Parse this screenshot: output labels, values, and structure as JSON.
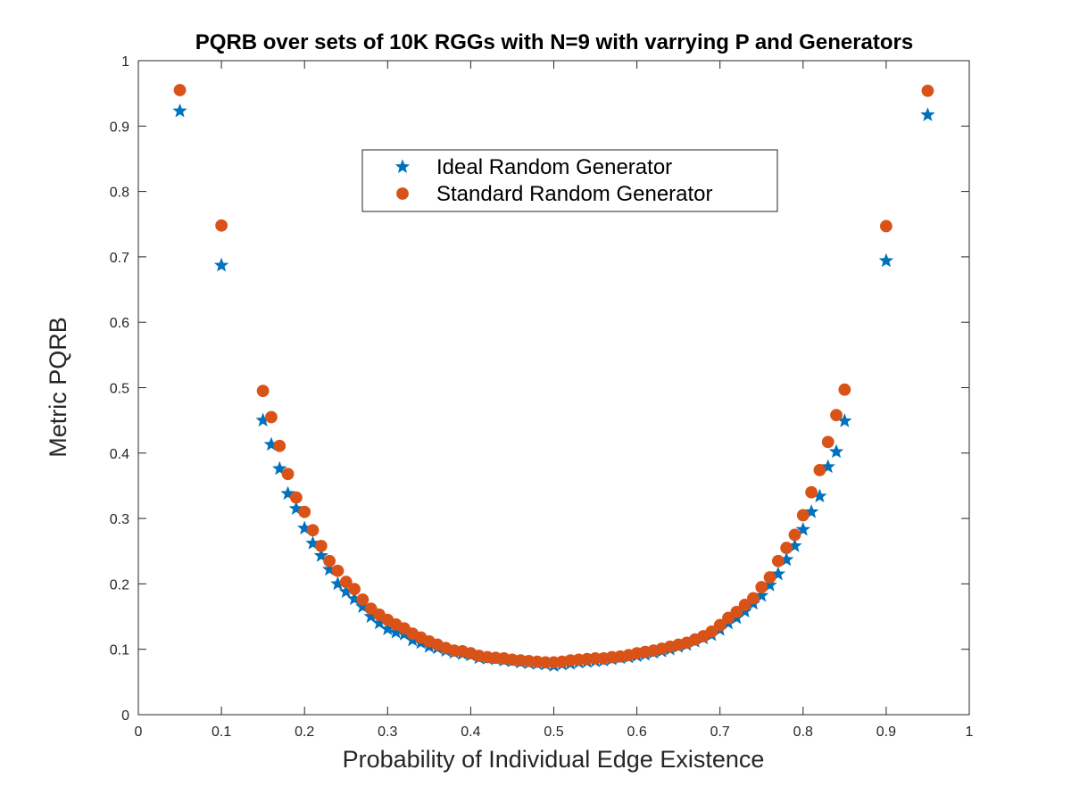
{
  "chart_data": {
    "type": "scatter",
    "title": "PQRB over sets of 10K RGGs with N=9 with varrying P and Generators",
    "xlabel": "Probability of Individual Edge Existence",
    "ylabel": "Metric PQRB",
    "xlim": [
      0,
      1
    ],
    "ylim": [
      0,
      1
    ],
    "x_ticks": [
      "0",
      "0.1",
      "0.2",
      "0.3",
      "0.4",
      "0.5",
      "0.6",
      "0.7",
      "0.8",
      "0.9",
      "1"
    ],
    "y_ticks": [
      "0",
      "0.1",
      "0.2",
      "0.3",
      "0.4",
      "0.5",
      "0.6",
      "0.7",
      "0.8",
      "0.9",
      "1"
    ],
    "grid": false,
    "legend_position": "top-center",
    "series": [
      {
        "name": "Ideal Random Generator",
        "marker": "star",
        "color": "#0072BD",
        "x": [
          0.05,
          0.1,
          0.15,
          0.16,
          0.17,
          0.18,
          0.19,
          0.2,
          0.21,
          0.22,
          0.23,
          0.24,
          0.25,
          0.26,
          0.27,
          0.28,
          0.29,
          0.3,
          0.31,
          0.32,
          0.33,
          0.34,
          0.35,
          0.36,
          0.37,
          0.38,
          0.39,
          0.4,
          0.41,
          0.42,
          0.43,
          0.44,
          0.45,
          0.46,
          0.47,
          0.48,
          0.49,
          0.5,
          0.51,
          0.52,
          0.53,
          0.54,
          0.55,
          0.56,
          0.57,
          0.58,
          0.59,
          0.6,
          0.61,
          0.62,
          0.63,
          0.64,
          0.65,
          0.66,
          0.67,
          0.68,
          0.69,
          0.7,
          0.71,
          0.72,
          0.73,
          0.74,
          0.75,
          0.76,
          0.77,
          0.78,
          0.79,
          0.8,
          0.81,
          0.82,
          0.83,
          0.84,
          0.85,
          0.9,
          0.95
        ],
        "y": [
          0.923,
          0.687,
          0.45,
          0.413,
          0.376,
          0.338,
          0.315,
          0.285,
          0.262,
          0.243,
          0.222,
          0.2,
          0.188,
          0.177,
          0.165,
          0.15,
          0.14,
          0.131,
          0.126,
          0.123,
          0.114,
          0.11,
          0.104,
          0.102,
          0.098,
          0.095,
          0.093,
          0.091,
          0.087,
          0.086,
          0.085,
          0.083,
          0.082,
          0.08,
          0.079,
          0.078,
          0.077,
          0.075,
          0.077,
          0.078,
          0.08,
          0.081,
          0.082,
          0.083,
          0.085,
          0.087,
          0.088,
          0.09,
          0.092,
          0.095,
          0.097,
          0.1,
          0.104,
          0.107,
          0.112,
          0.117,
          0.122,
          0.13,
          0.14,
          0.148,
          0.158,
          0.17,
          0.182,
          0.198,
          0.215,
          0.237,
          0.258,
          0.283,
          0.31,
          0.334,
          0.379,
          0.402,
          0.449,
          0.694,
          0.917
        ]
      },
      {
        "name": "Standard Random Generator",
        "marker": "circle",
        "color": "#D95319",
        "x": [
          0.05,
          0.1,
          0.15,
          0.16,
          0.17,
          0.18,
          0.19,
          0.2,
          0.21,
          0.22,
          0.23,
          0.24,
          0.25,
          0.26,
          0.27,
          0.28,
          0.29,
          0.3,
          0.31,
          0.32,
          0.33,
          0.34,
          0.35,
          0.36,
          0.37,
          0.38,
          0.39,
          0.4,
          0.41,
          0.42,
          0.43,
          0.44,
          0.45,
          0.46,
          0.47,
          0.48,
          0.49,
          0.5,
          0.51,
          0.52,
          0.53,
          0.54,
          0.55,
          0.56,
          0.57,
          0.58,
          0.59,
          0.6,
          0.61,
          0.62,
          0.63,
          0.64,
          0.65,
          0.66,
          0.67,
          0.68,
          0.69,
          0.7,
          0.71,
          0.72,
          0.73,
          0.74,
          0.75,
          0.76,
          0.77,
          0.78,
          0.79,
          0.8,
          0.81,
          0.82,
          0.83,
          0.84,
          0.85,
          0.9,
          0.95
        ],
        "y": [
          0.955,
          0.748,
          0.495,
          0.455,
          0.411,
          0.368,
          0.332,
          0.31,
          0.282,
          0.258,
          0.235,
          0.22,
          0.203,
          0.192,
          0.176,
          0.162,
          0.153,
          0.145,
          0.138,
          0.132,
          0.124,
          0.118,
          0.112,
          0.107,
          0.102,
          0.098,
          0.097,
          0.094,
          0.09,
          0.088,
          0.087,
          0.086,
          0.084,
          0.083,
          0.082,
          0.081,
          0.08,
          0.08,
          0.081,
          0.083,
          0.084,
          0.085,
          0.086,
          0.086,
          0.088,
          0.089,
          0.091,
          0.094,
          0.096,
          0.098,
          0.101,
          0.104,
          0.107,
          0.11,
          0.115,
          0.12,
          0.127,
          0.137,
          0.148,
          0.157,
          0.168,
          0.178,
          0.195,
          0.21,
          0.235,
          0.255,
          0.275,
          0.305,
          0.34,
          0.374,
          0.417,
          0.458,
          0.497,
          0.747,
          0.954
        ]
      }
    ]
  }
}
